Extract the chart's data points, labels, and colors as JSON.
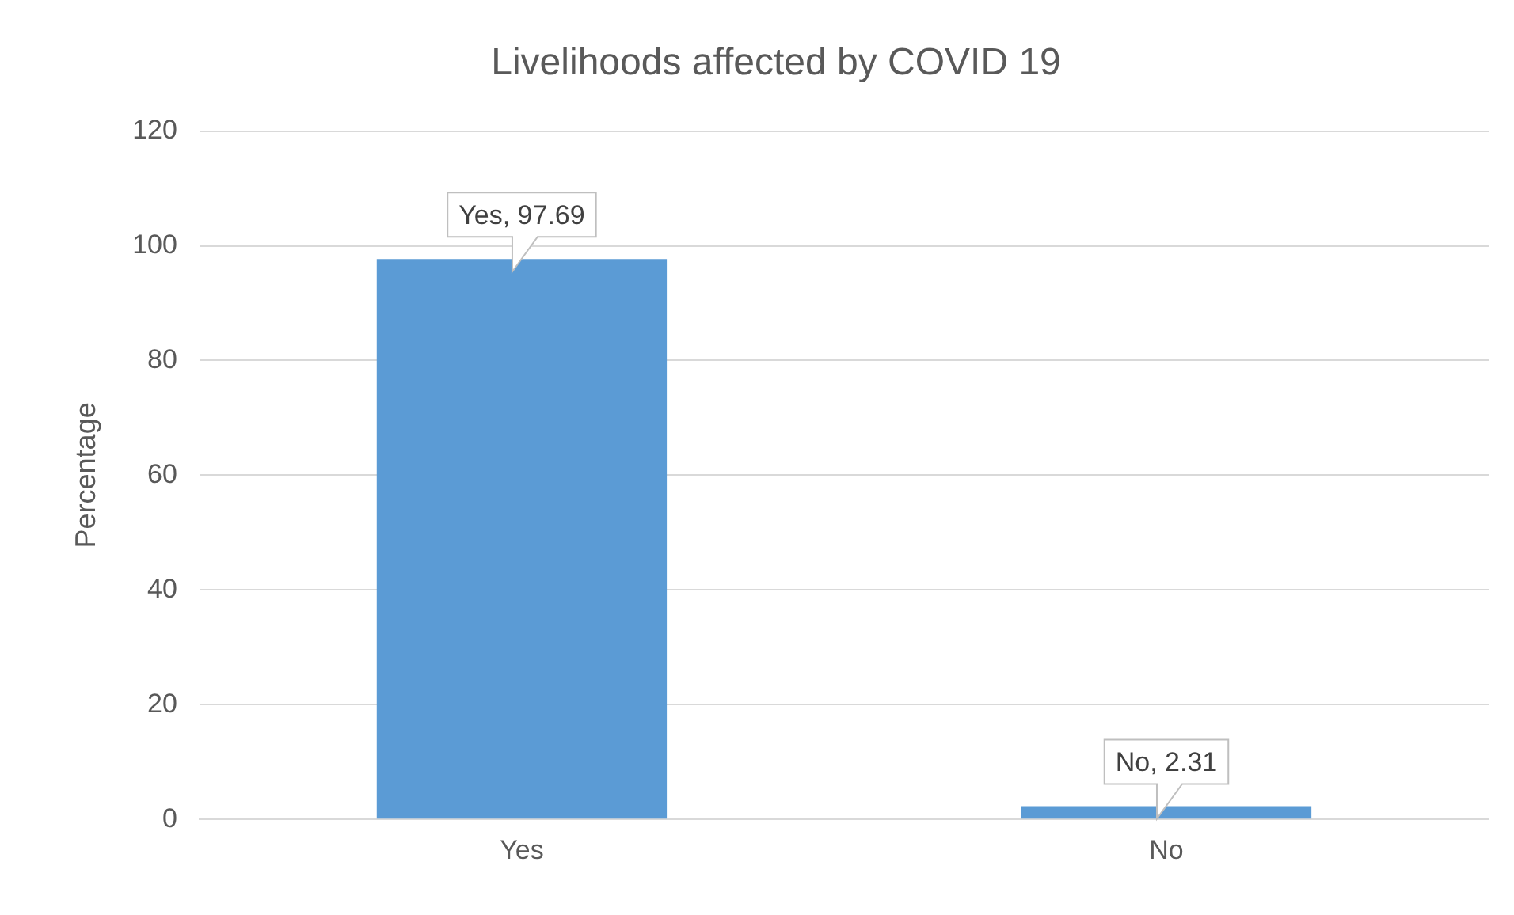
{
  "chart_data": {
    "type": "bar",
    "title": "Livelihoods affected by COVID 19",
    "ylabel": "Percentage",
    "categories": [
      "Yes",
      "No"
    ],
    "values": [
      97.69,
      2.31
    ],
    "value_labels": [
      "Yes, 97.69",
      "No, 2.31"
    ],
    "color": "#5b9bd5",
    "ylim": [
      0,
      120
    ],
    "yticks": [
      0,
      20,
      40,
      60,
      80,
      100,
      120
    ],
    "grid": "y",
    "legend": false
  }
}
